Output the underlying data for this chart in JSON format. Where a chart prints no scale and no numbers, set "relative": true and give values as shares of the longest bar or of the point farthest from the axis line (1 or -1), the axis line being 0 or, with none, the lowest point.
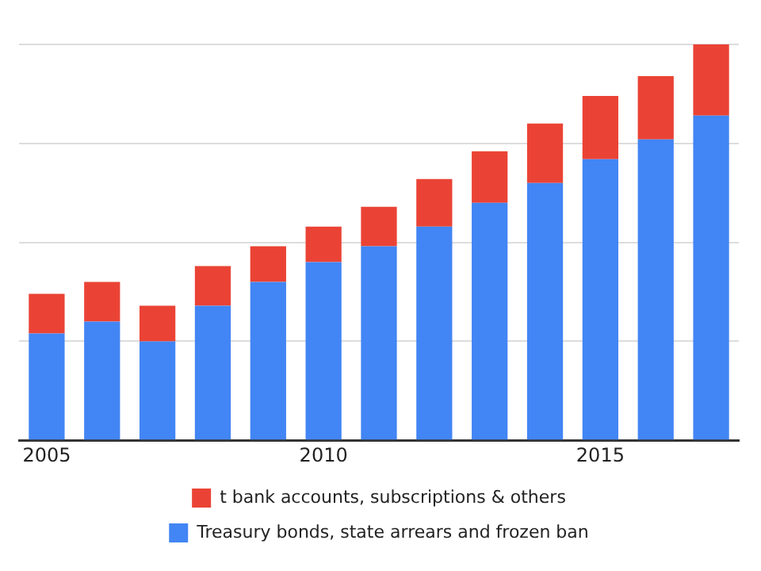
{
  "chart_data": {
    "type": "bar",
    "stacked": true,
    "relative": true,
    "grid": "y",
    "legend": "bottom",
    "categories": [
      "2005",
      null,
      null,
      null,
      null,
      "2010",
      null,
      null,
      null,
      null,
      "2015",
      null,
      null
    ],
    "series": [
      {
        "name": "Treasury bonds, state arrears and frozen ban",
        "color": "#4285f4",
        "values": [
          0.27,
          0.3,
          0.25,
          0.34,
          0.4,
          0.45,
          0.49,
          0.54,
          0.6,
          0.65,
          0.71,
          0.76,
          0.82
        ]
      },
      {
        "name": "t bank accounts, subscriptions & others",
        "color": "#ea4335",
        "values": [
          0.1,
          0.1,
          0.09,
          0.1,
          0.09,
          0.09,
          0.1,
          0.12,
          0.13,
          0.15,
          0.16,
          0.16,
          0.18
        ]
      }
    ]
  }
}
